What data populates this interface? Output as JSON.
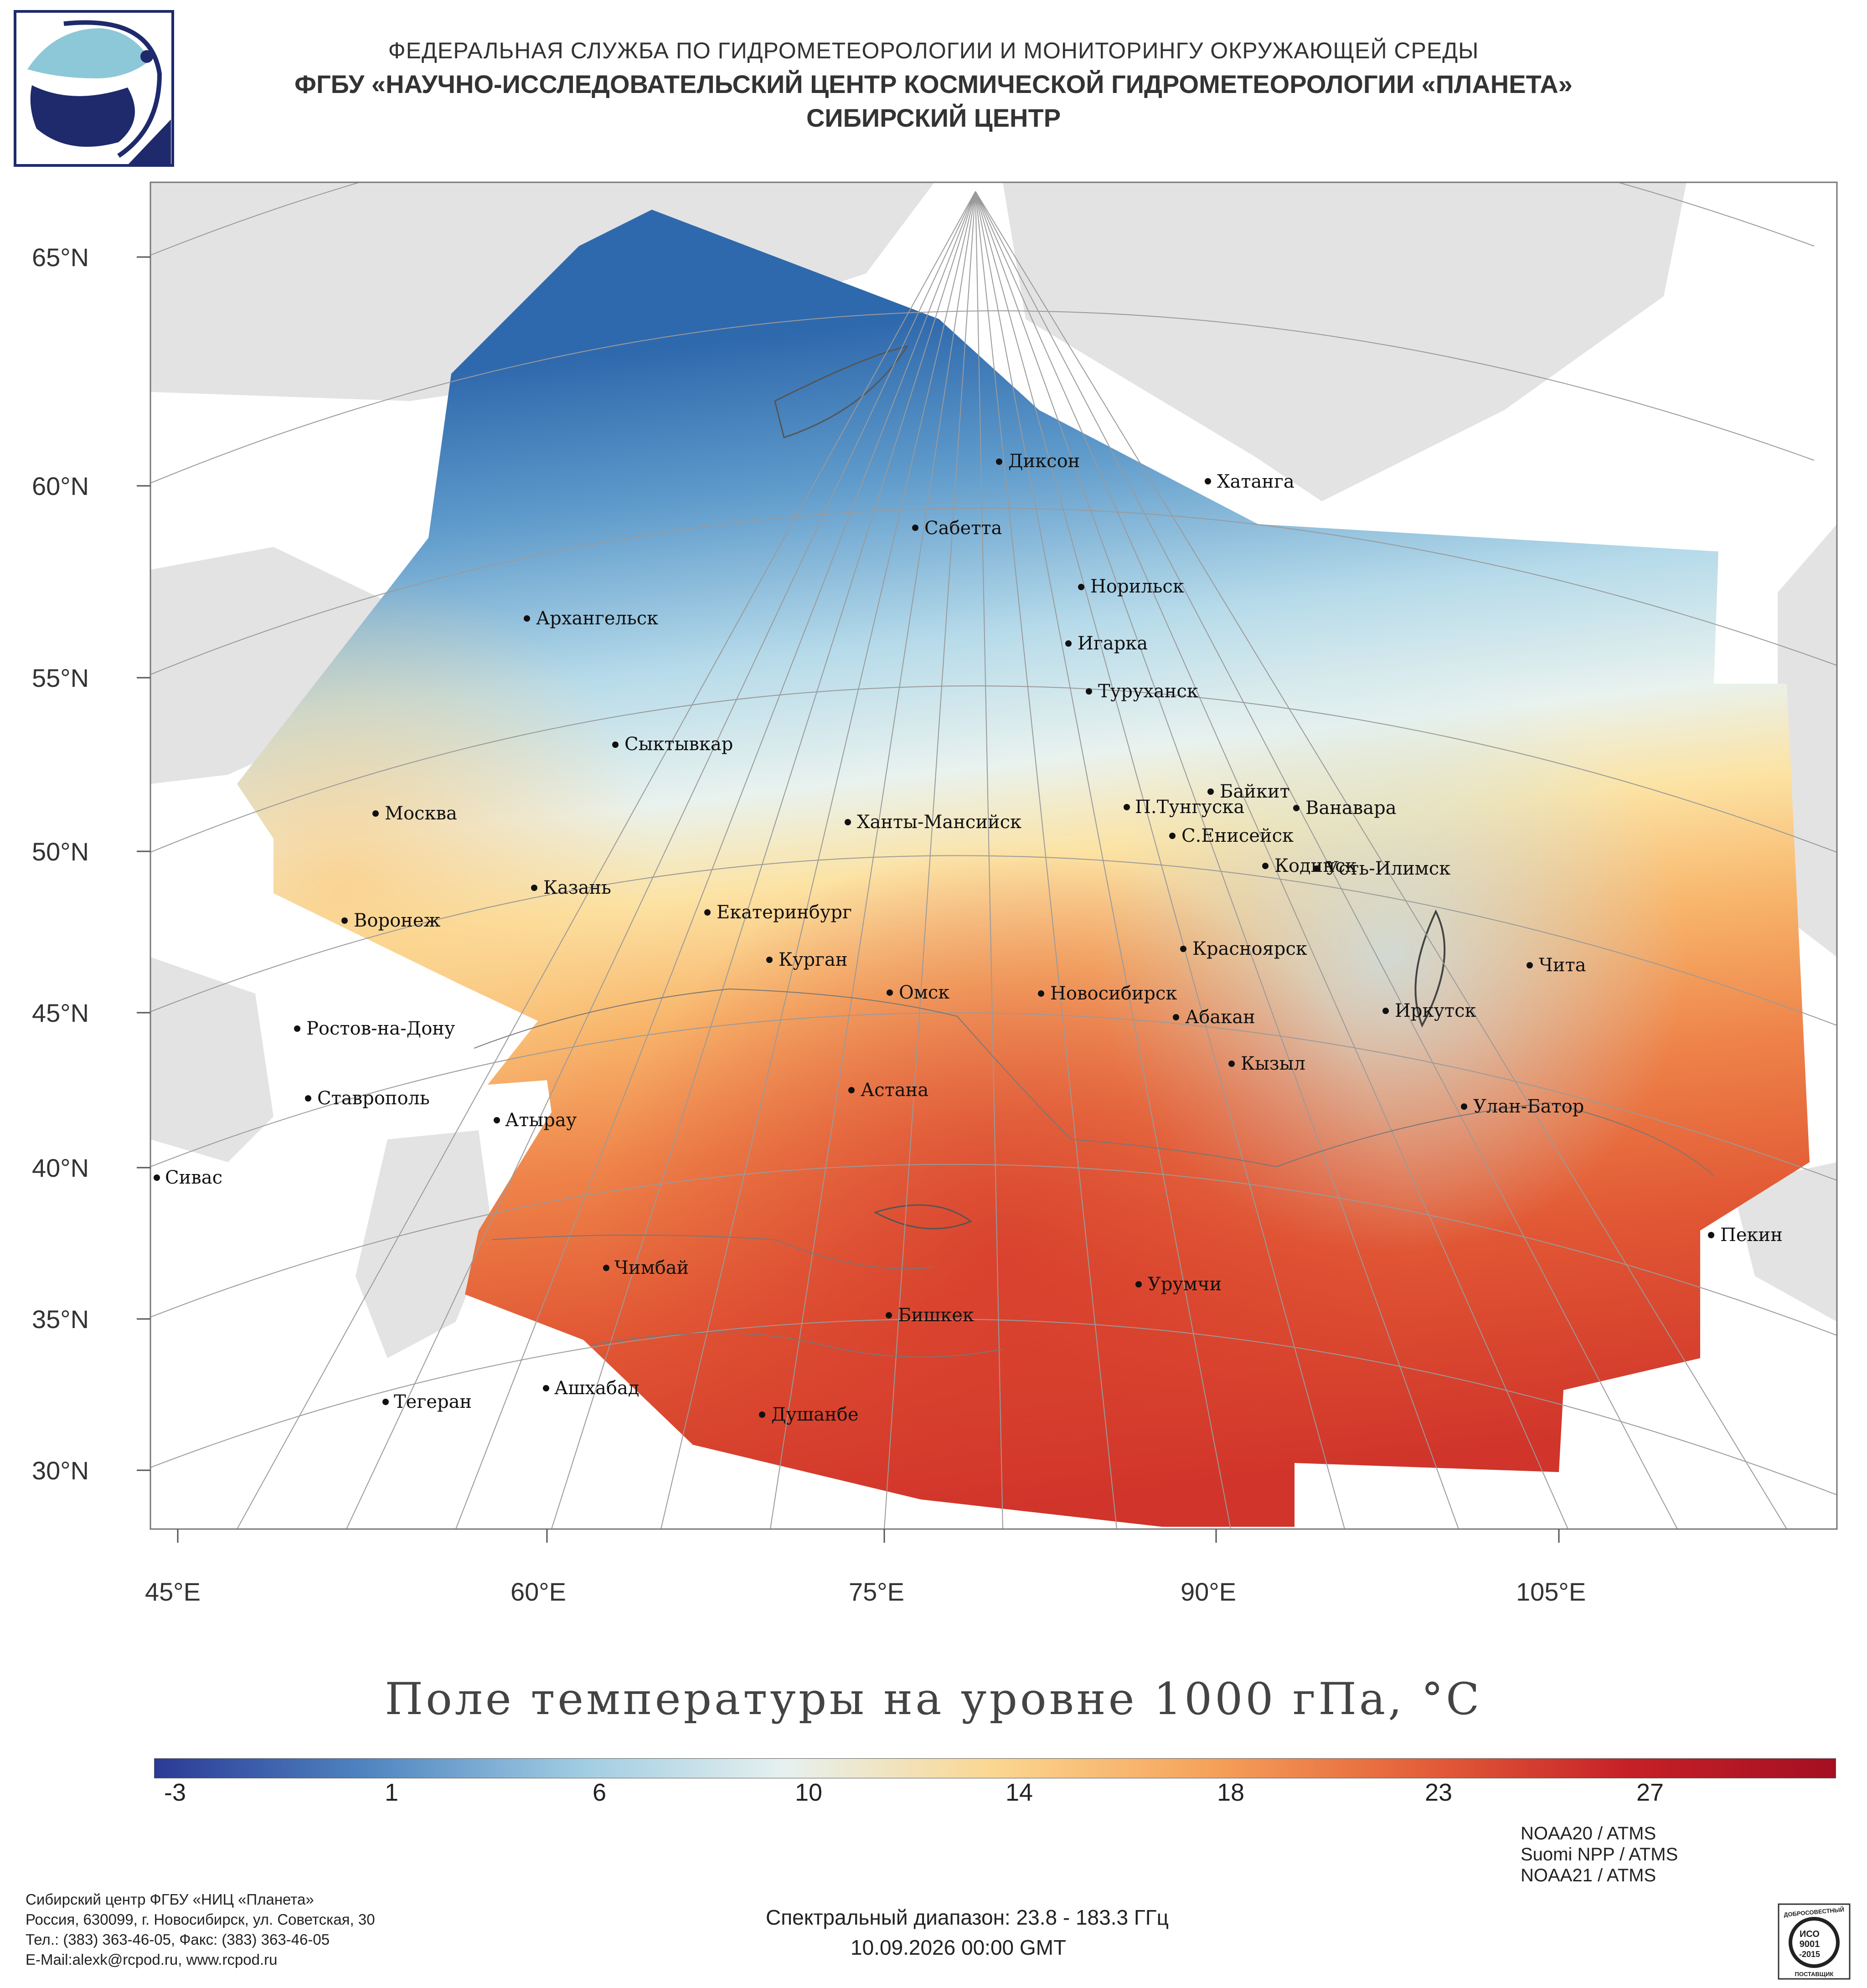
{
  "header": {
    "line1": "ФЕДЕРАЛЬНАЯ СЛУЖБА ПО ГИДРОМЕТЕОРОЛОГИИ И МОНИТОРИНГУ ОКРУЖАЮЩЕЙ СРЕДЫ",
    "line2": "ФГБУ «НАУЧНО-ИССЛЕДОВАТЕЛЬСКИЙ ЦЕНТР КОСМИЧЕСКОЙ ГИДРОМЕТЕОРОЛОГИИ «ПЛАНЕТА»",
    "line3": "СИБИРСКИЙ ЦЕНТР"
  },
  "axes": {
    "lat_labels": [
      "65°N",
      "60°N",
      "55°N",
      "50°N",
      "45°N",
      "40°N",
      "35°N",
      "30°N"
    ],
    "lon_labels": [
      "45°E",
      "60°E",
      "75°E",
      "90°E",
      "105°E"
    ]
  },
  "cities": [
    "Диксон",
    "Хатанга",
    "Сабетта",
    "Норильск",
    "Архангельск",
    "Игарка",
    "Туруханск",
    "Сыктывкар",
    "Байкит",
    "П.Тунгуска",
    "Ванавара",
    "Москва",
    "Ханты-Мансийск",
    "С.Енисейск",
    "Кодинск",
    "Усть-Илимск",
    "Казань",
    "Екатеринбург",
    "Воронеж",
    "Красноярск",
    "Курган",
    "Чита",
    "Омск",
    "Новосибирск",
    "Иркутск",
    "Абакан",
    "Ростов-на-Дону",
    "Кызыл",
    "Астана",
    "Ставрополь",
    "Улан-Батор",
    "Атырау",
    "Сивас",
    "Пекин",
    "Чимбай",
    "Урумчи",
    "Бишкек",
    "Ашхабад",
    "Тегеран",
    "Душанбе"
  ],
  "map_title": "Поле температуры на уровне 1000 гПа, °С",
  "colorbar": {
    "labels": [
      "-3",
      "1",
      "6",
      "10",
      "14",
      "18",
      "23",
      "27"
    ],
    "colors": [
      "#2b3a96",
      "#4f84c0",
      "#9ecbe2",
      "#e6f1ef",
      "#fbd690",
      "#f6a35b",
      "#e5613a",
      "#c62127",
      "#a50f22"
    ]
  },
  "satellites": [
    "NOAA20 / ATMS",
    "Suomi NPP / ATMS",
    "NOAA21 / ATMS"
  ],
  "address": [
    "Сибирский центр ФГБУ «НИЦ «Планета»",
    "Россия, 630099, г. Новосибирск, ул. Советская, 30",
    "Тел.: (383) 363-46-05, Факс: (383) 363-46-05",
    "E-Mail:alexk@rcpod.ru, www.rcpod.ru"
  ],
  "spectral_range": "Спектральный диапазон: 23.8 - 183.3 ГГц",
  "datetime": "10.09.2026 00:00 GMT",
  "iso_badge": {
    "line1": "ИСО",
    "line2": "9001",
    "line3": "-2015",
    "top": "ДОБРОСОВЕСТНЫЙ",
    "bottom": "ПОСТАВЩИК"
  }
}
